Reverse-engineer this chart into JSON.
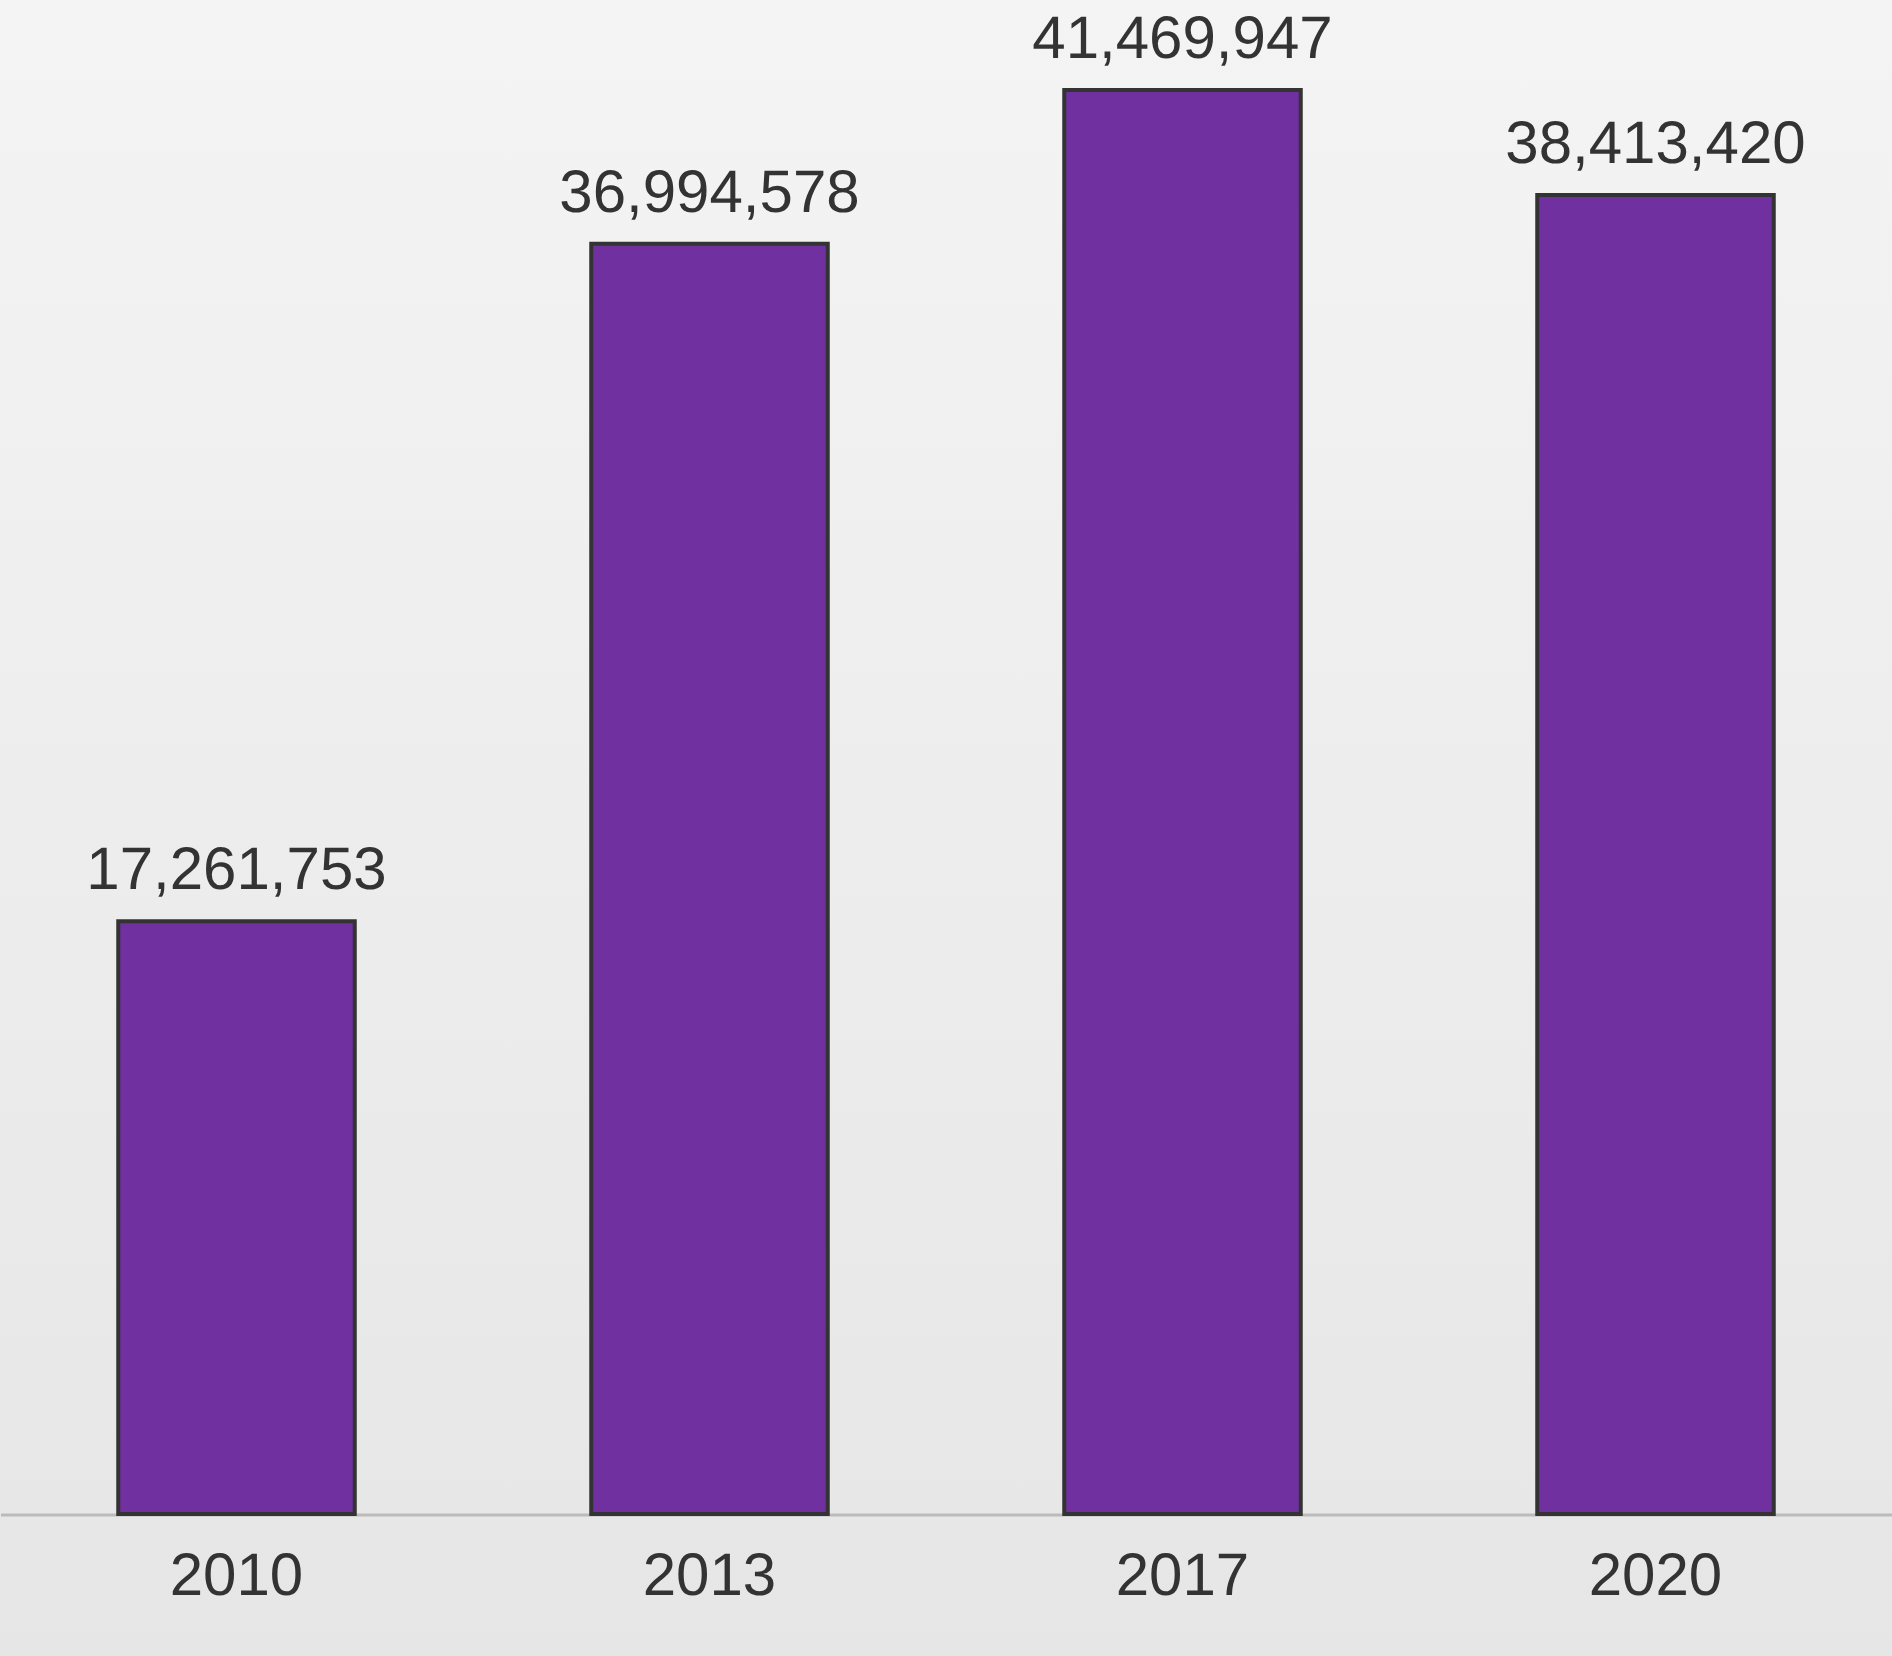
{
  "chart_data": {
    "type": "bar",
    "categories": [
      "2010",
      "2013",
      "2017",
      "2020"
    ],
    "values": [
      17261753,
      36994578,
      41469947,
      38413420
    ],
    "color": "#7030a0",
    "value_labels": [
      "17,261,753",
      "36,994,578",
      "41,469,947",
      "38,413,420"
    ]
  }
}
